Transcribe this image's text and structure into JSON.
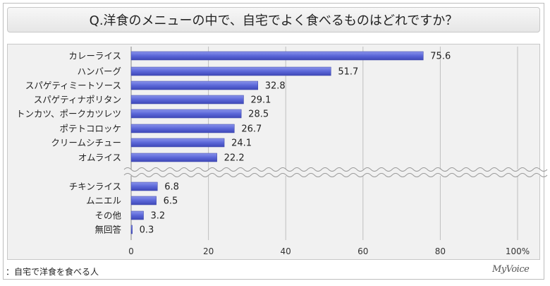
{
  "title": "Q.洋食のメニューの中で、自宅でよく食べるものはどれですか？",
  "footnote": "：自宅で洋食を食べる人",
  "brand": "MyVoice",
  "chart_data": {
    "type": "bar",
    "orientation": "horizontal",
    "categories": [
      "カレーライス",
      "ハンバーグ",
      "スパゲティミートソース",
      "スパゲティナポリタン",
      "トンカツ、ポークカツレツ",
      "ポテトコロッケ",
      "クリームシチュー",
      "オムライス",
      "チキンライス",
      "ムニエル",
      "その他",
      "無回答"
    ],
    "values": [
      75.6,
      51.7,
      32.8,
      29.1,
      28.5,
      26.7,
      24.1,
      22.2,
      6.8,
      6.5,
      3.2,
      0.3
    ],
    "value_labels": [
      "75.6",
      "51.7",
      "32.8",
      "29.1",
      "28.5",
      "26.7",
      "24.1",
      "22.2",
      "6.8",
      "6.5",
      "3.2",
      "0.3"
    ],
    "xlim": [
      0,
      100
    ],
    "xticks": [
      "0",
      "20",
      "40",
      "60",
      "80",
      "100%"
    ],
    "grid": true,
    "axis_break_after_index": 7,
    "bar_color": "#5b67d8"
  }
}
